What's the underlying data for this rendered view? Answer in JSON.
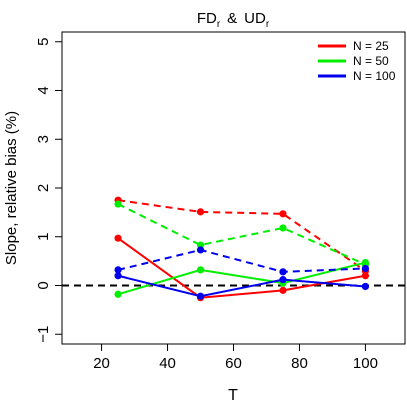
{
  "chart_data": {
    "type": "line",
    "title": "FD",
    "title_sub1": "r",
    "title_amp": "&",
    "title_part2": "UD",
    "title_sub2": "r",
    "xlabel": "T",
    "ylabel": "Slope, relative bias (%)",
    "xlim": [
      8,
      112
    ],
    "ylim": [
      -1.2,
      5.2
    ],
    "xticks": [
      20,
      40,
      60,
      80,
      100
    ],
    "yticks": [
      -1,
      0,
      1,
      2,
      3,
      4,
      5
    ],
    "ytick_labels": [
      "−1",
      "0",
      "1",
      "2",
      "3",
      "4",
      "5"
    ],
    "reference_line": {
      "y": 0,
      "style": "dashed",
      "color": "#000000"
    },
    "legend_position": "top-right",
    "legend": [
      {
        "label": "N = 25",
        "color": "#ff0000"
      },
      {
        "label": "N = 50",
        "color": "#00ee00"
      },
      {
        "label": "N = 100",
        "color": "#0000ee"
      }
    ],
    "x": [
      25,
      50,
      75,
      100
    ],
    "series": [
      {
        "group": "N = 25",
        "style": "solid",
        "color": "#ff0000",
        "values": [
          0.97,
          -0.25,
          -0.1,
          0.2
        ]
      },
      {
        "group": "N = 25",
        "style": "dashed",
        "color": "#ff0000",
        "values": [
          1.75,
          1.51,
          1.47,
          0.3
        ]
      },
      {
        "group": "N = 50",
        "style": "solid",
        "color": "#00ee00",
        "values": [
          -0.18,
          0.32,
          0.05,
          0.47
        ]
      },
      {
        "group": "N = 50",
        "style": "dashed",
        "color": "#00ee00",
        "values": [
          1.67,
          0.83,
          1.18,
          0.43
        ]
      },
      {
        "group": "N = 100",
        "style": "solid",
        "color": "#0000ee",
        "values": [
          0.2,
          -0.22,
          0.12,
          -0.02
        ]
      },
      {
        "group": "N = 100",
        "style": "dashed",
        "color": "#0000ee",
        "values": [
          0.32,
          0.73,
          0.28,
          0.35
        ]
      }
    ]
  }
}
